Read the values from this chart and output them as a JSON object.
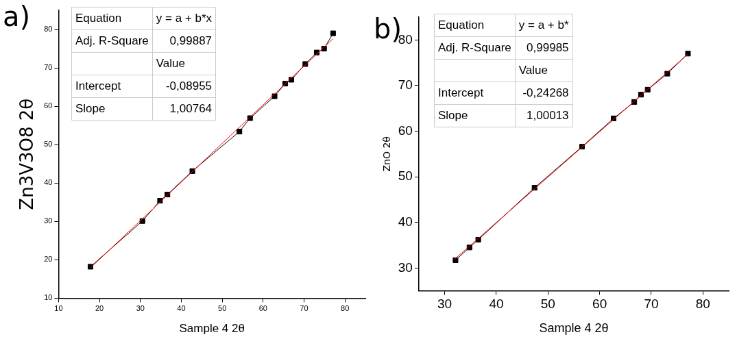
{
  "chart_data": [
    {
      "type": "line",
      "title": "a)",
      "xlabel": "Sample 4 2θ",
      "ylabel": "Zn3V3O8 2θ",
      "xlim": [
        10,
        85
      ],
      "ylim": [
        10,
        85
      ],
      "xticks": [
        10,
        20,
        30,
        40,
        50,
        60,
        70,
        80
      ],
      "yticks": [
        10,
        20,
        30,
        40,
        50,
        60,
        70,
        80
      ],
      "grid": false,
      "legend": false,
      "annotations": [
        "Equation",
        "y = a + b*x",
        "Adj. R-Square",
        "0,99887",
        "Value",
        "Intercept",
        "-0,08955",
        "Slope",
        "1,00764"
      ],
      "series": [
        {
          "type": "line",
          "marker": "square",
          "color": "#000000",
          "x": [
            17.8,
            30.5,
            34.8,
            36.6,
            42.7,
            54.2,
            56.8,
            62.8,
            65.4,
            66.9,
            70.3,
            73.1,
            74.9,
            77.1
          ],
          "values": [
            18.2,
            30.1,
            35.4,
            37.0,
            43.1,
            53.4,
            56.9,
            62.6,
            65.9,
            66.9,
            71.0,
            74.0,
            75.0,
            79.0
          ]
        },
        {
          "type": "line",
          "marker": "none",
          "color": "#ff0000",
          "x": [
            17.8,
            77.1
          ],
          "values": [
            17.9,
            77.6
          ]
        }
      ]
    },
    {
      "type": "line",
      "title": "b)",
      "xlabel": "Sample 4 2θ",
      "ylabel": "ZnO 2θ",
      "xlim": [
        25,
        85
      ],
      "ylim": [
        25,
        85
      ],
      "xticks": [
        30,
        40,
        50,
        60,
        70,
        80
      ],
      "yticks": [
        30,
        40,
        50,
        60,
        70,
        80
      ],
      "grid": false,
      "legend": false,
      "annotations": [
        "Equation",
        "y = a + b*",
        "Adj. R-Square",
        "0,99985",
        "Value",
        "Intercept",
        "-0,24268",
        "Slope",
        "1,00013"
      ],
      "series": [
        {
          "type": "line",
          "marker": "square",
          "color": "#000000",
          "x": [
            32.1,
            34.8,
            36.5,
            47.4,
            56.6,
            62.7,
            66.7,
            68.0,
            69.3,
            73.1,
            77.1
          ],
          "values": [
            31.7,
            34.5,
            36.2,
            47.6,
            56.6,
            62.8,
            66.4,
            68.0,
            69.1,
            72.6,
            77.0
          ]
        },
        {
          "type": "line",
          "marker": "none",
          "color": "#ff0000",
          "x": [
            31.9,
            77.1
          ],
          "values": [
            31.9,
            76.9
          ]
        }
      ]
    }
  ]
}
